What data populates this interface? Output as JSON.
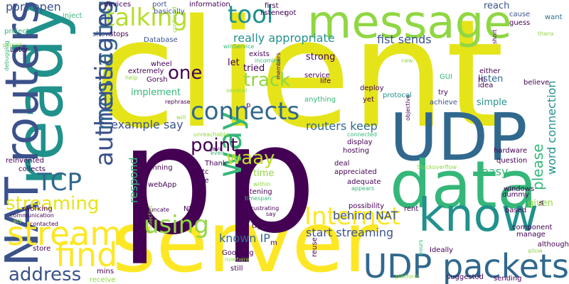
{
  "palette": {
    "background": "#ffffff",
    "purple": "#440154",
    "indigo": "#3b528b",
    "blue": "#31688e",
    "teal": "#21918c",
    "green": "#35b779",
    "lime": "#90d743",
    "yellow": "#fde725",
    "gold": "#e5e419"
  },
  "words": [
    {
      "id": "client",
      "text": "client",
      "color": "#e5e419"
    },
    {
      "id": "server",
      "text": "server",
      "color": "#fde725"
    },
    {
      "id": "p1",
      "text": "p",
      "color": "#440154"
    },
    {
      "id": "p2",
      "text": "p",
      "color": "#440154"
    },
    {
      "id": "message",
      "text": "message",
      "color": "#90d743"
    },
    {
      "id": "ready",
      "text": "ready",
      "color": "#21918c"
    },
    {
      "id": "udp_big",
      "text": "UDP",
      "color": "#31688e"
    },
    {
      "id": "data",
      "text": "data",
      "color": "#35b779"
    },
    {
      "id": "know",
      "text": "know",
      "color": "#21918c"
    },
    {
      "id": "nat_routers",
      "text": "NAT routers",
      "color": "#3b528b"
    },
    {
      "id": "udp_packets",
      "text": "UDP packets",
      "color": "#31688e"
    },
    {
      "id": "internet",
      "text": "Internet",
      "color": "#fde725"
    },
    {
      "id": "stream",
      "text": "stream",
      "color": "#fde725"
    },
    {
      "id": "find",
      "text": "find",
      "color": "#fde725"
    },
    {
      "id": "way",
      "text": "way",
      "color": "#35b779"
    },
    {
      "id": "tool",
      "text": "tool",
      "color": "#21918c"
    },
    {
      "id": "talking",
      "text": "talking",
      "color": "#b5de2b"
    },
    {
      "id": "tcp",
      "text": "TCP",
      "color": "#31688e"
    },
    {
      "id": "messaging",
      "text": "messaging",
      "color": "#31688e"
    },
    {
      "id": "authenticates",
      "text": "authenticates",
      "color": "#3b528b"
    },
    {
      "id": "using",
      "text": "using",
      "color": "#90d743"
    },
    {
      "id": "streaming_left",
      "text": "streaming",
      "color": "#e5e419"
    },
    {
      "id": "address",
      "text": "address",
      "color": "#3b528b"
    },
    {
      "id": "one",
      "text": "one",
      "color": "#440154"
    },
    {
      "id": "track",
      "text": "track",
      "color": "#90d743"
    },
    {
      "id": "connects",
      "text": "connects",
      "color": "#31688e"
    },
    {
      "id": "point",
      "text": "point",
      "color": "#440154"
    },
    {
      "id": "waay",
      "text": "waay",
      "color": "#bddf26"
    },
    {
      "id": "please",
      "text": "please",
      "color": "#35b779"
    },
    {
      "id": "word_connection",
      "text": "word connection",
      "color": "#21918c"
    },
    {
      "id": "really_appropriate",
      "text": "really appropriate",
      "color": "#21918c"
    },
    {
      "id": "fist_sends",
      "text": "fist sends",
      "color": "#3b528b"
    },
    {
      "id": "port_open",
      "text": "port open",
      "color": "#3b528b"
    },
    {
      "id": "respond",
      "text": "respond",
      "color": "#35b779"
    },
    {
      "id": "routers_keep",
      "text": "routers keep",
      "color": "#31688e"
    },
    {
      "id": "example_say",
      "text": "example say",
      "color": "#3b528b"
    },
    {
      "id": "behind_nat",
      "text": "behind NAT",
      "color": "#3b528b"
    },
    {
      "id": "start_streaming",
      "text": "start streaming",
      "color": "#3b528b"
    },
    {
      "id": "known_ip",
      "text": "known IP",
      "color": "#31688e"
    },
    {
      "id": "easy",
      "text": "easy",
      "color": "#35b779"
    },
    {
      "id": "given",
      "text": "given",
      "color": "#90d743"
    },
    {
      "id": "strong",
      "text": "strong",
      "color": "#440154"
    },
    {
      "id": "simple",
      "text": "simple",
      "color": "#21918c"
    },
    {
      "id": "listen",
      "text": "listen",
      "color": "#31688e"
    },
    {
      "id": "information",
      "text": "information",
      "color": "#440154"
    },
    {
      "id": "reach",
      "text": "reach",
      "color": "#3b528b"
    },
    {
      "id": "database",
      "text": "Database",
      "color": "#3b528b"
    },
    {
      "id": "let",
      "text": "let",
      "color": "#440154"
    },
    {
      "id": "tried",
      "text": "tried",
      "color": "#440154"
    },
    {
      "id": "implement",
      "text": "implement",
      "color": "#35b779"
    },
    {
      "id": "time",
      "text": "time",
      "color": "#90d743"
    },
    {
      "id": "listening",
      "text": "listening",
      "color": "#440154"
    },
    {
      "id": "devices",
      "text": "devices",
      "color": "#440154"
    },
    {
      "id": "port_small",
      "text": "port",
      "color": "#3b528b"
    },
    {
      "id": "basically",
      "text": "basically",
      "color": "#3b528b"
    },
    {
      "id": "listener",
      "text": "listener",
      "color": "#440154"
    },
    {
      "id": "got",
      "text": "got",
      "color": "#440154"
    },
    {
      "id": "first",
      "text": "first",
      "color": "#440154"
    },
    {
      "id": "inject",
      "text": "inject",
      "color": "#35b779"
    },
    {
      "id": "cause",
      "text": "cause",
      "color": "#3b528b"
    },
    {
      "id": "want",
      "text": "want",
      "color": "#31688e"
    },
    {
      "id": "guess",
      "text": "guess",
      "color": "#440154"
    },
    {
      "id": "thanx",
      "text": "thanx",
      "color": "#90d743"
    },
    {
      "id": "project",
      "text": "project",
      "color": "#35b779"
    },
    {
      "id": "persist",
      "text": "persist",
      "color": "#90d743"
    },
    {
      "id": "later",
      "text": "Later",
      "color": "#440154"
    },
    {
      "id": "show",
      "text": "show",
      "color": "#3b528b"
    },
    {
      "id": "stops",
      "text": "stops",
      "color": "#440154"
    },
    {
      "id": "confused",
      "text": "confused",
      "color": "#90d743"
    },
    {
      "id": "winservice",
      "text": "winService",
      "color": "#35b779"
    },
    {
      "id": "exists",
      "text": "exists",
      "color": "#440154"
    },
    {
      "id": "incoming",
      "text": "incoming",
      "color": "#35b779"
    },
    {
      "id": "wheel",
      "text": "wheel",
      "color": "#440154"
    },
    {
      "id": "extremely",
      "text": "extremely",
      "color": "#440154"
    },
    {
      "id": "help",
      "text": "help",
      "color": "#90d743"
    },
    {
      "id": "gorsh",
      "text": "Gorsh",
      "color": "#440154"
    },
    {
      "id": "service",
      "text": "service",
      "color": "#440154"
    },
    {
      "id": "life",
      "text": "life",
      "color": "#440154"
    },
    {
      "id": "members",
      "text": "members",
      "color": "#440154"
    },
    {
      "id": "deploy",
      "text": "deploy",
      "color": "#440154"
    },
    {
      "id": "protocol",
      "text": "protocol",
      "color": "#21918c"
    },
    {
      "id": "yet",
      "text": "yet",
      "color": "#440154"
    },
    {
      "id": "achieve",
      "text": "achieve",
      "color": "#3b528b"
    },
    {
      "id": "anything",
      "text": "anything",
      "color": "#35b779"
    },
    {
      "id": "several",
      "text": "several",
      "color": "#90d743"
    },
    {
      "id": "rephrase",
      "text": "rephrase",
      "color": "#440154"
    },
    {
      "id": "debugging",
      "text": "debugging",
      "color": "#35b779"
    },
    {
      "id": "new",
      "text": "new",
      "color": "#90d743"
    },
    {
      "id": "idea",
      "text": "idea",
      "color": "#440154"
    },
    {
      "id": "hi",
      "text": "Hi",
      "color": "#440154"
    },
    {
      "id": "gui",
      "text": "GUI",
      "color": "#35b779"
    },
    {
      "id": "short",
      "text": "short",
      "color": "#440154"
    },
    {
      "id": "either",
      "text": "either",
      "color": "#440154"
    },
    {
      "id": "believe",
      "text": "believe",
      "color": "#440154"
    },
    {
      "id": "try",
      "text": "try",
      "color": "#440154"
    },
    {
      "id": "objective",
      "text": "objective",
      "color": "#440154"
    },
    {
      "id": "will",
      "text": "will",
      "color": "#90d743"
    },
    {
      "id": "unreachable",
      "text": "unreachable",
      "color": "#90d743"
    },
    {
      "id": "connected",
      "text": "connected",
      "color": "#35b779"
    },
    {
      "id": "display",
      "text": "display",
      "color": "#440154"
    },
    {
      "id": "hosting",
      "text": "hosting",
      "color": "#440154"
    },
    {
      "id": "hardware",
      "text": "hardware",
      "color": "#440154"
    },
    {
      "id": "java",
      "text": "Java",
      "color": "#440154"
    },
    {
      "id": "even",
      "text": "even",
      "color": "#35b779"
    },
    {
      "id": "thank",
      "text": "Thank",
      "color": "#440154"
    },
    {
      "id": "deal",
      "text": "deal",
      "color": "#440154"
    },
    {
      "id": "question",
      "text": "question",
      "color": "#440154"
    },
    {
      "id": "reinvented",
      "text": "reinvented",
      "color": "#440154"
    },
    {
      "id": "collects",
      "text": "collects",
      "color": "#440154"
    },
    {
      "id": "running",
      "text": "running",
      "color": "#440154"
    },
    {
      "id": "etc",
      "text": "etc",
      "color": "#440154"
    },
    {
      "id": "appreciated",
      "text": "appreciated",
      "color": "#440154"
    },
    {
      "id": "stackoverflow",
      "text": "Stackoverflow",
      "color": "#90d743"
    },
    {
      "id": "webapp",
      "text": "webApp",
      "color": "#440154"
    },
    {
      "id": "use",
      "text": "use",
      "color": "#440154"
    },
    {
      "id": "adequate",
      "text": "adequate",
      "color": "#440154"
    },
    {
      "id": "within",
      "text": "within",
      "color": "#90d743"
    },
    {
      "id": "windows",
      "text": "windows",
      "color": "#440154"
    },
    {
      "id": "dummy",
      "text": "dummy",
      "color": "#440154"
    },
    {
      "id": "timespan",
      "text": "timespan",
      "color": "#35b779"
    },
    {
      "id": "appears",
      "text": "appears",
      "color": "#35b779"
    },
    {
      "id": "working",
      "text": "working",
      "color": "#440154"
    },
    {
      "id": "truncate",
      "text": "truncate",
      "color": "#440154"
    },
    {
      "id": "communication",
      "text": "communication",
      "color": "#440154"
    },
    {
      "id": "contacted",
      "text": "contacted",
      "color": "#440154"
    },
    {
      "id": "act",
      "text": "act",
      "color": "#90d743"
    },
    {
      "id": "net",
      "text": "NET",
      "color": "#440154"
    },
    {
      "id": "ip",
      "text": "IP",
      "color": "#440154"
    },
    {
      "id": "say",
      "text": "say",
      "color": "#440154"
    },
    {
      "id": "trying",
      "text": "trying",
      "color": "#440154"
    },
    {
      "id": "possibility",
      "text": "possibility",
      "color": "#440154"
    },
    {
      "id": "rent",
      "text": "rent",
      "color": "#440154"
    },
    {
      "id": "based",
      "text": "based",
      "color": "#440154"
    },
    {
      "id": "ia",
      "text": "IA",
      "color": "#440154"
    },
    {
      "id": "component",
      "text": "component",
      "color": "#440154"
    },
    {
      "id": "manage",
      "text": "manage",
      "color": "#440154"
    },
    {
      "id": "although",
      "text": "although",
      "color": "#440154"
    },
    {
      "id": "allow",
      "text": "allow",
      "color": "#90d743"
    },
    {
      "id": "ideally",
      "text": "Ideally",
      "color": "#440154"
    },
    {
      "id": "store",
      "text": "store",
      "color": "#440154"
    },
    {
      "id": "collected",
      "text": "collected",
      "color": "#90d743"
    },
    {
      "id": "googling",
      "text": "Googling",
      "color": "#440154"
    },
    {
      "id": "nowhere",
      "text": "nowhere",
      "color": "#90d743"
    },
    {
      "id": "still",
      "text": "still",
      "color": "#440154"
    },
    {
      "id": "m",
      "text": "m",
      "color": "#440154"
    },
    {
      "id": "reuse",
      "text": "reuse",
      "color": "#440154"
    },
    {
      "id": "hours",
      "text": "hours",
      "color": "#35b779"
    },
    {
      "id": "platform",
      "text": "platform",
      "color": "#90d743"
    },
    {
      "id": "suggested",
      "text": "suggested",
      "color": "#440154"
    },
    {
      "id": "sending",
      "text": "sending",
      "color": "#440154"
    },
    {
      "id": "mins",
      "text": "mins",
      "color": "#440154"
    },
    {
      "id": "receive",
      "text": "receive",
      "color": "#90d743"
    },
    {
      "id": "frustrating",
      "text": "frustrating",
      "color": "#440154"
    },
    {
      "id": "p_small",
      "text": "p",
      "color": "#440154"
    }
  ]
}
